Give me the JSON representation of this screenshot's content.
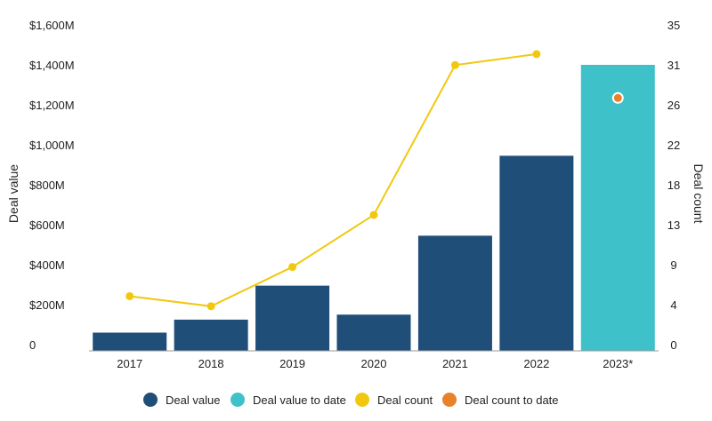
{
  "chart_data": {
    "type": "bar",
    "categories": [
      "2017",
      "2018",
      "2019",
      "2020",
      "2021",
      "2022",
      "2023*"
    ],
    "series": [
      {
        "name": "Deal value",
        "kind": "bar",
        "color": "#1f4e79",
        "values": [
          60,
          125,
          295,
          150,
          545,
          945,
          null
        ]
      },
      {
        "name": "Deal value to date",
        "kind": "bar",
        "color": "#3ec1c9",
        "values": [
          null,
          null,
          null,
          null,
          null,
          null,
          1400
        ]
      },
      {
        "name": "Deal count",
        "kind": "line",
        "axis": "right",
        "color": "#f2c80f",
        "values": [
          5.3,
          4.2,
          8.5,
          14.2,
          30.6,
          31.8,
          null
        ]
      },
      {
        "name": "Deal count to date",
        "kind": "point",
        "axis": "right",
        "color": "#e8822a",
        "values": [
          null,
          null,
          null,
          null,
          null,
          null,
          27
        ]
      }
    ],
    "ylabel": "Deal value",
    "y2label": "Deal count",
    "ylim": [
      0,
      1600
    ],
    "y2lim": [
      0,
      35
    ],
    "yticks": [
      "0",
      "$200M",
      "$400M",
      "$600M",
      "$800M",
      "$1,000M",
      "$1,200M",
      "$1,400M",
      "$1,600M"
    ],
    "y2ticks": [
      "0",
      "4",
      "9",
      "13",
      "18",
      "22",
      "26",
      "31",
      "35"
    ],
    "legend_position": "bottom",
    "grid": false
  }
}
